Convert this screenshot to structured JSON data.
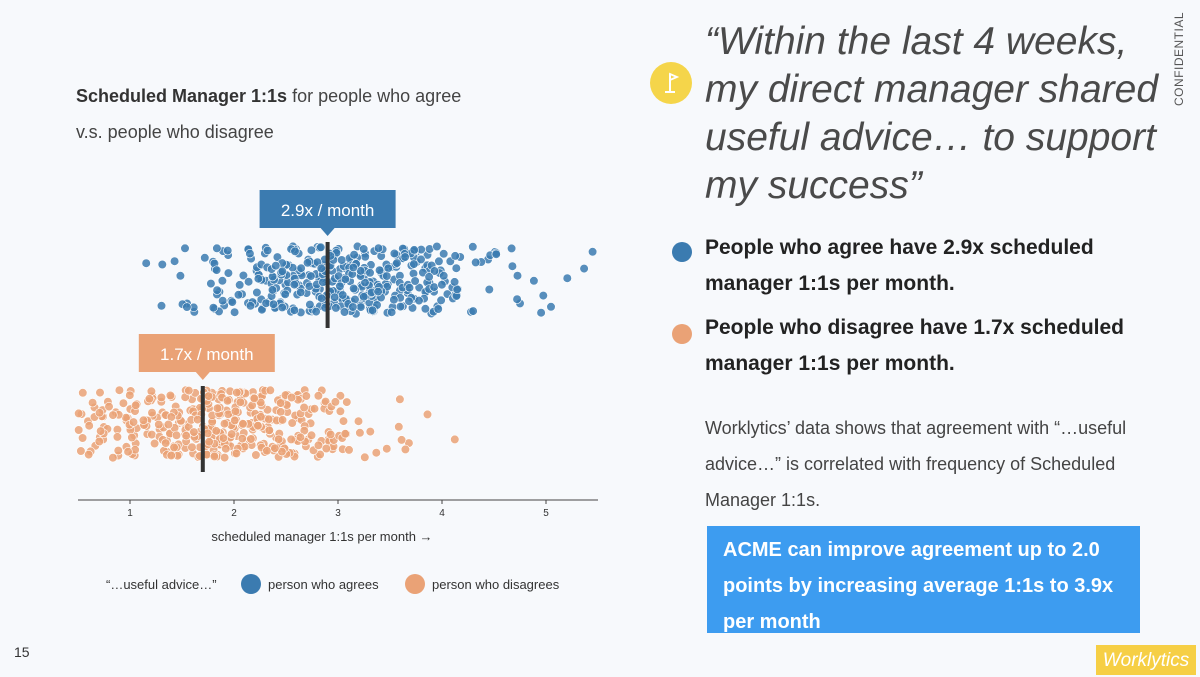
{
  "page_number": "15",
  "confidential_label": "CONFIDENTIAL",
  "chart_title_bold": "Scheduled Manager 1:1s",
  "chart_title_rest": "for people who agree",
  "chart_title_line2": "v.s. people who disagree",
  "quote": "“Within the last 4 weeks, my direct manager shared useful advice… to support my success”",
  "bullets": [
    {
      "text": "People who agree have 2.9x scheduled manager 1:1s per month.",
      "color": "#3b7bb0"
    },
    {
      "text": "People who disagree have 1.7x scheduled manager 1:1s per month.",
      "color": "#eaa276"
    }
  ],
  "summary": "Worklytics’ data shows that agreement with “…useful advice…” is correlated with frequency of Scheduled Manager 1:1s.",
  "callout": "ACME can improve agreement up to 2.0 points by increasing average 1:1s to 3.9x per month",
  "logo_text": "Worklytics",
  "chart_data": {
    "type": "scatter",
    "subtype": "strip/jitter",
    "xlabel": "scheduled manager 1:1s per month →",
    "xticks": [
      1,
      2,
      3,
      4,
      5
    ],
    "xlim": [
      0.5,
      5.5
    ],
    "legend_title": "“…useful advice…”",
    "legend_position": "bottom",
    "series": [
      {
        "name": "person who agrees",
        "color": "#3b7bb0",
        "mean": 2.9,
        "mean_label": "2.9x / month",
        "count": 420,
        "range": [
          1.0,
          5.5
        ]
      },
      {
        "name": "person who disagrees",
        "color": "#eaa276",
        "mean": 1.7,
        "mean_label": "1.7x / month",
        "count": 420,
        "range": [
          0.5,
          4.6
        ]
      }
    ],
    "grid": false
  }
}
